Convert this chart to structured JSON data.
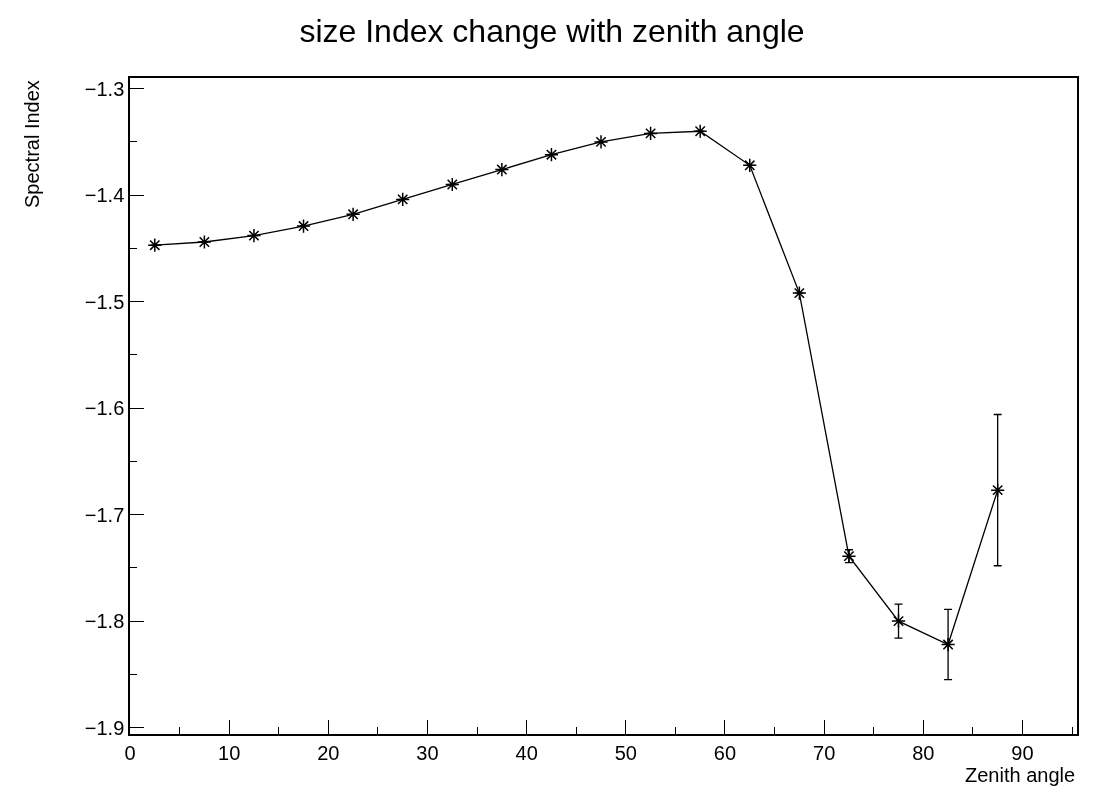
{
  "chart_data": {
    "type": "line",
    "title": "size Index change with zenith angle",
    "xlabel": "Zenith angle",
    "ylabel": "Spectral Index",
    "x": [
      2.5,
      7.5,
      12.5,
      17.5,
      22.5,
      27.5,
      32.5,
      37.5,
      42.5,
      47.5,
      52.5,
      57.5,
      62.5,
      67.5,
      72.5,
      77.5,
      82.5,
      87.5
    ],
    "series": [
      {
        "color": "#000000",
        "values": [
          -1.447,
          -1.444,
          -1.438,
          -1.429,
          -1.418,
          -1.404,
          -1.39,
          -1.376,
          -1.362,
          -1.35,
          -1.342,
          -1.34,
          -1.372,
          -1.492,
          -1.739,
          -1.8,
          -1.822,
          -1.677
        ],
        "errors": [
          null,
          null,
          null,
          null,
          null,
          null,
          null,
          null,
          null,
          null,
          null,
          null,
          null,
          null,
          0.006,
          0.016,
          0.033,
          0.071
        ]
      }
    ],
    "marker": "cross",
    "line_style": "solid",
    "xlim": [
      0,
      95.5
    ],
    "xticks": [
      0,
      10,
      20,
      30,
      40,
      50,
      60,
      70,
      80,
      90
    ],
    "ylim": [
      -1.906,
      -1.29
    ],
    "yticks": [
      -1.3,
      -1.4,
      -1.5,
      -1.6,
      -1.7,
      -1.8,
      -1.9
    ]
  }
}
